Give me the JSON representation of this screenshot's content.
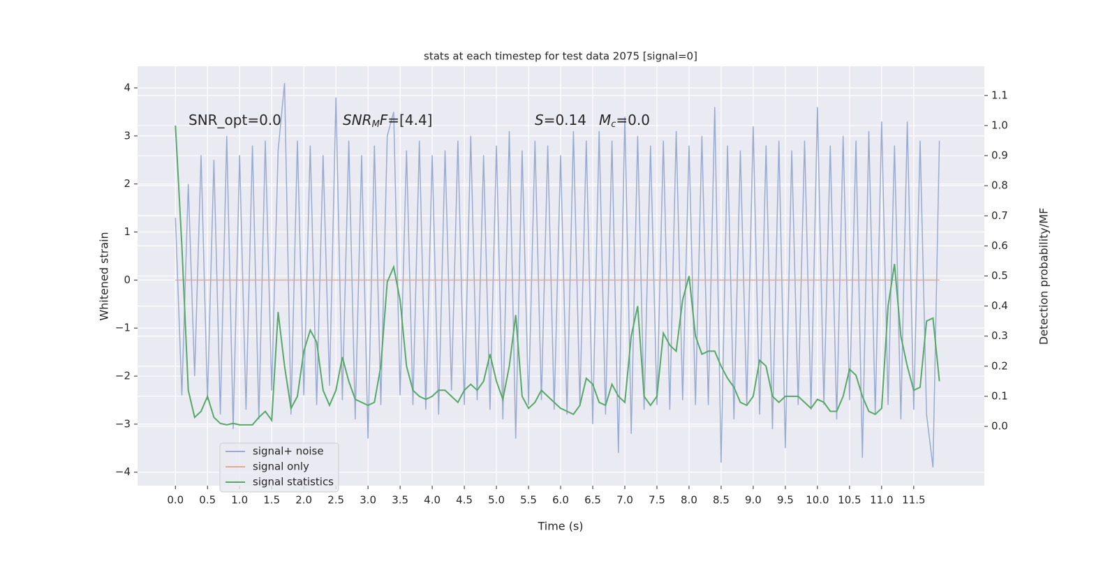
{
  "chart_data": {
    "type": "line",
    "title": "stats at each timestep for test data 2075 [signal=0]",
    "xlabel": "Time (s)",
    "ylabel": "Whitened strain",
    "y2label": "Detection probability/MF",
    "annotations": [
      [
        {
          "text": "SNR_opt=0.0"
        }
      ],
      [
        {
          "text": "SNR",
          "italic": true
        },
        {
          "text": "M",
          "italic": true,
          "sub": true
        },
        {
          "text": "F",
          "italic": true
        },
        {
          "text": "=[4.4]"
        }
      ],
      [
        {
          "text": "S",
          "italic": true
        },
        {
          "text": "=0.14"
        }
      ],
      [
        {
          "text": "M",
          "italic": true
        },
        {
          "text": "c",
          "italic": true,
          "sub": true
        },
        {
          "text": "=0.0"
        }
      ]
    ],
    "x": [
      0,
      0.1,
      0.2,
      0.3,
      0.4,
      0.5,
      0.6,
      0.7,
      0.8,
      0.9,
      1.0,
      1.1,
      1.2,
      1.3,
      1.4,
      1.5,
      1.6,
      1.7,
      1.8,
      1.9,
      2.0,
      2.1,
      2.2,
      2.3,
      2.4,
      2.5,
      2.6,
      2.7,
      2.8,
      2.9,
      3.0,
      3.1,
      3.2,
      3.3,
      3.4,
      3.5,
      3.6,
      3.7,
      3.8,
      3.9,
      4.0,
      4.1,
      4.2,
      4.3,
      4.4,
      4.5,
      4.6,
      4.7,
      4.8,
      4.9,
      5.0,
      5.1,
      5.2,
      5.3,
      5.4,
      5.5,
      5.6,
      5.7,
      5.8,
      5.9,
      6.0,
      6.1,
      6.2,
      6.3,
      6.4,
      6.5,
      6.6,
      6.7,
      6.8,
      6.9,
      7.0,
      7.1,
      7.2,
      7.3,
      7.4,
      7.5,
      7.6,
      7.7,
      7.8,
      7.9,
      8.0,
      8.1,
      8.2,
      8.3,
      8.4,
      8.5,
      8.6,
      8.7,
      8.8,
      8.9,
      9.0,
      9.1,
      9.2,
      9.3,
      9.4,
      9.5,
      9.6,
      9.7,
      9.8,
      9.9,
      10.0,
      10.1,
      10.2,
      10.3,
      10.4,
      10.5,
      10.6,
      10.7,
      10.8,
      10.9,
      11.0,
      11.1,
      11.2,
      11.3,
      11.4,
      11.5,
      11.6,
      11.7,
      11.8,
      11.9
    ],
    "series": [
      {
        "name": "signal+ noise",
        "color": "#9aabd0",
        "values": [
          1.3,
          -2.4,
          2.0,
          -2.0,
          2.6,
          -2.5,
          2.5,
          -2.8,
          3.0,
          -3.1,
          2.6,
          -2.7,
          2.8,
          -2.9,
          2.9,
          -2.3,
          2.7,
          4.1,
          -2.8,
          2.9,
          -2.4,
          2.8,
          -2.6,
          2.6,
          -2.2,
          3.8,
          -2.5,
          2.9,
          -2.9,
          2.6,
          -3.3,
          2.8,
          -2.6,
          3.0,
          3.5,
          -2.4,
          2.7,
          -2.6,
          2.9,
          -2.7,
          2.6,
          -2.8,
          2.7,
          -2.3,
          2.9,
          -2.6,
          3.0,
          -2.5,
          2.6,
          -2.7,
          2.8,
          -2.9,
          3.1,
          -3.3,
          2.7,
          -2.6,
          2.9,
          -2.5,
          2.8,
          -2.7,
          2.6,
          -2.8,
          3.1,
          -2.6,
          2.9,
          -3.0,
          3.1,
          -2.8,
          2.9,
          -3.6,
          3.4,
          -3.2,
          3.0,
          -2.7,
          2.8,
          -2.6,
          2.9,
          -2.7,
          3.1,
          -2.5,
          2.8,
          -2.6,
          3.0,
          -2.6,
          3.6,
          -3.8,
          2.8,
          -2.9,
          2.7,
          -2.6,
          3.2,
          -2.8,
          2.8,
          -3.1,
          2.9,
          -3.5,
          2.7,
          -2.6,
          2.9,
          -2.7,
          3.6,
          -2.6,
          2.8,
          -2.9,
          3.0,
          -2.5,
          2.9,
          -3.7,
          3.1,
          -2.8,
          3.3,
          -2.6,
          2.8,
          -2.9,
          3.3,
          -2.7,
          2.9,
          -2.8,
          -3.9,
          2.9
        ]
      },
      {
        "name": "signal only",
        "color": "#e7a98a",
        "values": [
          0,
          0,
          0,
          0,
          0,
          0,
          0,
          0,
          0,
          0,
          0,
          0,
          0,
          0,
          0,
          0,
          0,
          0,
          0,
          0,
          0,
          0,
          0,
          0,
          0,
          0,
          0,
          0,
          0,
          0,
          0,
          0,
          0,
          0,
          0,
          0,
          0,
          0,
          0,
          0,
          0,
          0,
          0,
          0,
          0,
          0,
          0,
          0,
          0,
          0,
          0,
          0,
          0,
          0,
          0,
          0,
          0,
          0,
          0,
          0,
          0,
          0,
          0,
          0,
          0,
          0,
          0,
          0,
          0,
          0,
          0,
          0,
          0,
          0,
          0,
          0,
          0,
          0,
          0,
          0,
          0,
          0,
          0,
          0,
          0,
          0,
          0,
          0,
          0,
          0,
          0,
          0,
          0,
          0,
          0,
          0,
          0,
          0,
          0,
          0,
          0,
          0,
          0,
          0,
          0,
          0,
          0,
          0,
          0,
          0,
          0,
          0,
          0,
          0,
          0,
          0,
          0,
          0,
          0,
          0
        ]
      },
      {
        "name": "signal statistics",
        "color": "#55a868",
        "axis": "y2",
        "values": [
          1.0,
          0.6,
          0.12,
          0.03,
          0.05,
          0.1,
          0.03,
          0.01,
          0.005,
          0.01,
          0.005,
          0.005,
          0.005,
          0.03,
          0.05,
          0.02,
          0.38,
          0.2,
          0.06,
          0.1,
          0.25,
          0.32,
          0.28,
          0.12,
          0.07,
          0.12,
          0.23,
          0.15,
          0.09,
          0.08,
          0.07,
          0.08,
          0.2,
          0.48,
          0.53,
          0.42,
          0.2,
          0.12,
          0.1,
          0.09,
          0.1,
          0.12,
          0.12,
          0.1,
          0.08,
          0.12,
          0.14,
          0.12,
          0.15,
          0.24,
          0.15,
          0.09,
          0.2,
          0.37,
          0.1,
          0.06,
          0.08,
          0.12,
          0.1,
          0.08,
          0.06,
          0.05,
          0.04,
          0.07,
          0.16,
          0.14,
          0.08,
          0.07,
          0.14,
          0.1,
          0.08,
          0.3,
          0.4,
          0.1,
          0.07,
          0.1,
          0.31,
          0.27,
          0.25,
          0.42,
          0.5,
          0.3,
          0.24,
          0.25,
          0.25,
          0.2,
          0.16,
          0.13,
          0.08,
          0.07,
          0.1,
          0.22,
          0.2,
          0.1,
          0.08,
          0.1,
          0.1,
          0.1,
          0.08,
          0.06,
          0.09,
          0.08,
          0.05,
          0.05,
          0.1,
          0.19,
          0.17,
          0.1,
          0.05,
          0.04,
          0.06,
          0.4,
          0.54,
          0.3,
          0.2,
          0.12,
          0.13,
          0.35,
          0.36,
          0.15
        ]
      }
    ],
    "xlim": [
      -0.59,
      12.6
    ],
    "xticks": [
      {
        "value": 0,
        "label": "0.0"
      },
      0.5,
      {
        "value": 1,
        "label": "1.0"
      },
      1.5,
      {
        "value": 2,
        "label": "2.0"
      },
      2.5,
      {
        "value": 3,
        "label": "3.0"
      },
      3.5,
      {
        "value": 4,
        "label": "4.0"
      },
      4.5,
      {
        "value": 5,
        "label": "5.0"
      },
      5.5,
      {
        "value": 6,
        "label": "6.0"
      },
      6.5,
      {
        "value": 7,
        "label": "7.0"
      },
      7.5,
      {
        "value": 8,
        "label": "8.0"
      },
      8.5,
      {
        "value": 9,
        "label": "9.0"
      },
      9.5,
      {
        "value": 10,
        "label": "10.0"
      },
      10.5,
      {
        "value": 11,
        "label": "11.0"
      },
      11.5
    ],
    "ylim": [
      -4.28,
      4.45
    ],
    "yticks": [
      {
        "value": -4,
        "label": "−4"
      },
      {
        "value": -3,
        "label": "−3"
      },
      {
        "value": -2,
        "label": "−2"
      },
      {
        "value": -1,
        "label": "−1"
      },
      0,
      1,
      2,
      3,
      4
    ],
    "y2lim": [
      -0.197,
      1.197
    ],
    "y2ticks": [
      {
        "value": 0,
        "label": "0.0"
      },
      0.1,
      0.2,
      0.3,
      0.4,
      0.5,
      0.6,
      0.7,
      0.8,
      0.9,
      {
        "value": 1,
        "label": "1.0"
      },
      1.1
    ],
    "grid": true,
    "legend": "lower left"
  }
}
